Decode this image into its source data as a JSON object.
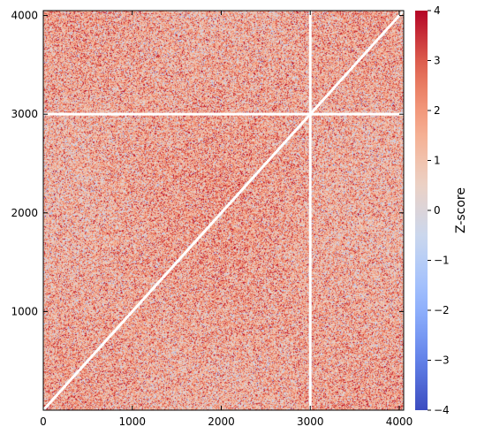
{
  "chart_data": {
    "type": "heatmap",
    "title": "",
    "xlabel": "",
    "ylabel": "",
    "xlim": [
      0,
      4050
    ],
    "ylim": [
      0,
      4050
    ],
    "x_ticks": [
      0,
      1000,
      2000,
      3000,
      4000
    ],
    "y_ticks": [
      1000,
      2000,
      3000,
      4000
    ],
    "x_tick_labels": [
      "0",
      "1000",
      "2000",
      "3000",
      "4000"
    ],
    "y_tick_labels": [
      "1000",
      "2000",
      "3000",
      "4000"
    ],
    "grid": false,
    "colorbar": {
      "label": "Z-score",
      "range": [
        -4,
        4
      ],
      "ticks": [
        -4,
        -3,
        -2,
        -1,
        0,
        1,
        2,
        3,
        4
      ],
      "tick_labels": [
        "−4",
        "−3",
        "−2",
        "−1",
        "0",
        "1",
        "2",
        "3",
        "4"
      ],
      "colormap": "coolwarm",
      "colors": [
        "#3b4cc0",
        "#6889ee",
        "#9abbff",
        "#c9d7f0",
        "#edd1c2",
        "#f7a889",
        "#e26952",
        "#b40426"
      ]
    },
    "matrix_description": "dense pairwise z-score matrix, values mostly between -1 and 3 (mean ≈ 1.5)",
    "cell_value_mean": 1.5,
    "blank_lines": [
      {
        "orientation": "vertical",
        "at": 3000
      },
      {
        "orientation": "horizontal",
        "at": 3000
      }
    ],
    "diagonal": "blank (white) from (0,0) to (4050,4050)"
  }
}
